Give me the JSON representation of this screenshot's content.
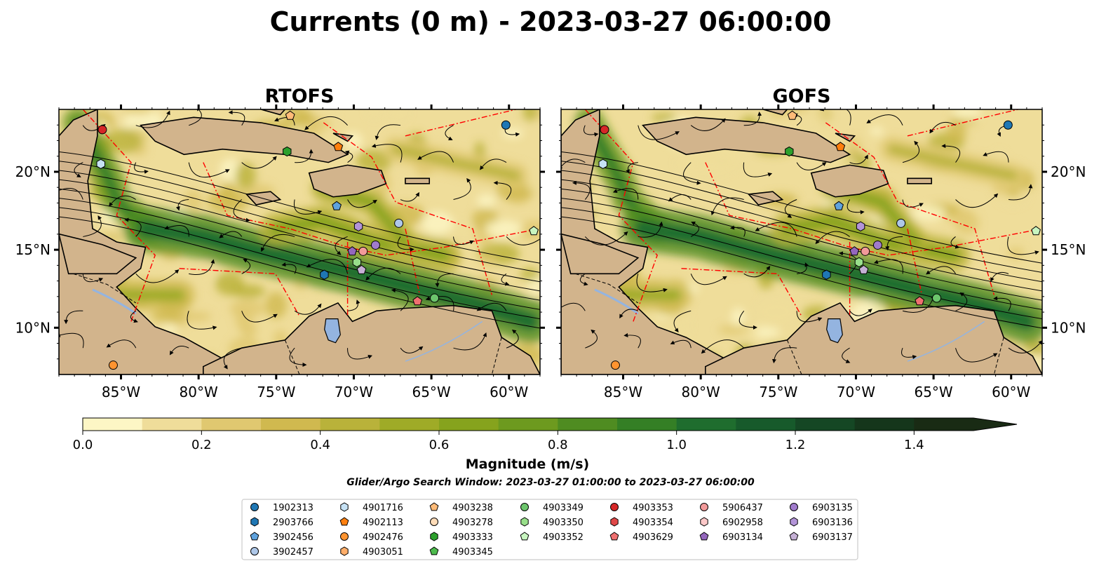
{
  "title": "Currents (0 m) - 2023-03-27 06:00:00",
  "colors": {
    "land": "#d2b48c",
    "lake": "#94b4e0",
    "eez": "#ff0000",
    "colormap": [
      "#fdf6c5",
      "#efdd9a",
      "#e0c870",
      "#d0b94f",
      "#b9b23a",
      "#9fab27",
      "#86a31d",
      "#6d9a1f",
      "#4f8c21",
      "#347f25",
      "#1f6d2e",
      "#175a2b",
      "#154724",
      "#15361b",
      "#192b14"
    ]
  },
  "panels": [
    {
      "title": "RTOFS",
      "xticks": [
        "85°W",
        "80°W",
        "75°W",
        "70°W",
        "65°W",
        "60°W"
      ],
      "yticks": [
        "20°N",
        "15°N",
        "10°N"
      ],
      "yaxis_side": "left"
    },
    {
      "title": "GOFS",
      "xticks": [
        "85°W",
        "80°W",
        "75°W",
        "70°W",
        "65°W",
        "60°W"
      ],
      "yticks": [
        "20°N",
        "15°N",
        "10°N"
      ],
      "yaxis_side": "right"
    }
  ],
  "colorbar": {
    "label": "Magnitude (m/s)",
    "ticks": [
      "0.0",
      "0.2",
      "0.4",
      "0.6",
      "0.8",
      "1.0",
      "1.2",
      "1.4"
    ],
    "extend": "max"
  },
  "search_window": "Glider/Argo Search Window: 2023-03-27 01:00:00 to 2023-03-27 06:00:00",
  "legend": {
    "columns": [
      [
        {
          "id": "1902313",
          "marker": "circle",
          "color": "#1f77b4"
        },
        {
          "id": "2903766",
          "marker": "hexagon",
          "color": "#1f77b4"
        },
        {
          "id": "3902456",
          "marker": "pentagon",
          "color": "#5fa2dd"
        },
        {
          "id": "3902457",
          "marker": "circle",
          "color": "#aec7e8"
        }
      ],
      [
        {
          "id": "4901716",
          "marker": "hexagon",
          "color": "#c6e2f5"
        },
        {
          "id": "4902113",
          "marker": "pentagon",
          "color": "#ff7f0e"
        },
        {
          "id": "4902476",
          "marker": "circle",
          "color": "#ff9430"
        },
        {
          "id": "4903051",
          "marker": "hexagon",
          "color": "#ffae6a"
        }
      ],
      [
        {
          "id": "4903238",
          "marker": "pentagon",
          "color": "#ffbb78"
        },
        {
          "id": "4903278",
          "marker": "circle",
          "color": "#ffdcb8"
        },
        {
          "id": "4903333",
          "marker": "hexagon",
          "color": "#2ca02c"
        },
        {
          "id": "4903345",
          "marker": "pentagon",
          "color": "#4dbb4d"
        }
      ],
      [
        {
          "id": "4903349",
          "marker": "circle",
          "color": "#6cc56c"
        },
        {
          "id": "4903350",
          "marker": "hexagon",
          "color": "#98df8a"
        },
        {
          "id": "4903352",
          "marker": "pentagon",
          "color": "#c8f5c0"
        }
      ],
      [
        {
          "id": "4903353",
          "marker": "circle",
          "color": "#d62728"
        },
        {
          "id": "4903354",
          "marker": "hexagon",
          "color": "#e04848"
        },
        {
          "id": "4903629",
          "marker": "pentagon",
          "color": "#ef7070"
        }
      ],
      [
        {
          "id": "5906437",
          "marker": "circle",
          "color": "#f29a9a"
        },
        {
          "id": "6902958",
          "marker": "hexagon",
          "color": "#fcc8c8"
        },
        {
          "id": "6903134",
          "marker": "pentagon",
          "color": "#9467bd"
        }
      ],
      [
        {
          "id": "6903135",
          "marker": "circle",
          "color": "#a07bcc"
        },
        {
          "id": "6903136",
          "marker": "hexagon",
          "color": "#b394d8"
        },
        {
          "id": "6903137",
          "marker": "pentagon",
          "color": "#c5b0d5"
        }
      ]
    ]
  },
  "chart_data": {
    "type": "heatmap",
    "variable": "Magnitude (m/s)",
    "depth": "0 m",
    "time": "2023-03-27 06:00:00",
    "lon_range": [
      -89,
      -58
    ],
    "lat_range": [
      7,
      24
    ],
    "cbar_range": [
      0,
      1.5
    ],
    "colorbar_levels": [
      0.0,
      0.1,
      0.2,
      0.3,
      0.4,
      0.5,
      0.6,
      0.7,
      0.8,
      0.9,
      1.0,
      1.1,
      1.2,
      1.3,
      1.4,
      1.5
    ],
    "models": [
      "RTOFS",
      "GOFS"
    ],
    "observations": [
      {
        "id": "1902313",
        "lon": -60.2,
        "lat": 23.0
      },
      {
        "id": "4902476",
        "lon": -85.5,
        "lat": 7.6
      },
      {
        "id": "4901716",
        "lon": -86.3,
        "lat": 20.5
      },
      {
        "id": "4903353",
        "lon": -86.2,
        "lat": 22.7
      },
      {
        "id": "4903238",
        "lon": -74.1,
        "lat": 23.6
      },
      {
        "id": "4903333",
        "lon": -74.3,
        "lat": 21.3
      },
      {
        "id": "4902113",
        "lon": -71.0,
        "lat": 21.6
      },
      {
        "id": "3902456",
        "lon": -71.1,
        "lat": 17.8
      },
      {
        "id": "3902457",
        "lon": -67.1,
        "lat": 16.7
      },
      {
        "id": "4903352",
        "lon": -58.4,
        "lat": 16.2
      },
      {
        "id": "6903136",
        "lon": -69.7,
        "lat": 16.5
      },
      {
        "id": "6903135",
        "lon": -68.6,
        "lat": 15.3
      },
      {
        "id": "6903134",
        "lon": -70.1,
        "lat": 14.9
      },
      {
        "id": "5906437",
        "lon": -69.4,
        "lat": 14.9
      },
      {
        "id": "4903350",
        "lon": -69.8,
        "lat": 14.2
      },
      {
        "id": "6903137",
        "lon": -69.5,
        "lat": 13.7
      },
      {
        "id": "2903766",
        "lon": -71.9,
        "lat": 13.4
      },
      {
        "id": "4903349",
        "lon": -64.8,
        "lat": 11.9
      },
      {
        "id": "4903629",
        "lon": -65.9,
        "lat": 11.7
      }
    ]
  }
}
